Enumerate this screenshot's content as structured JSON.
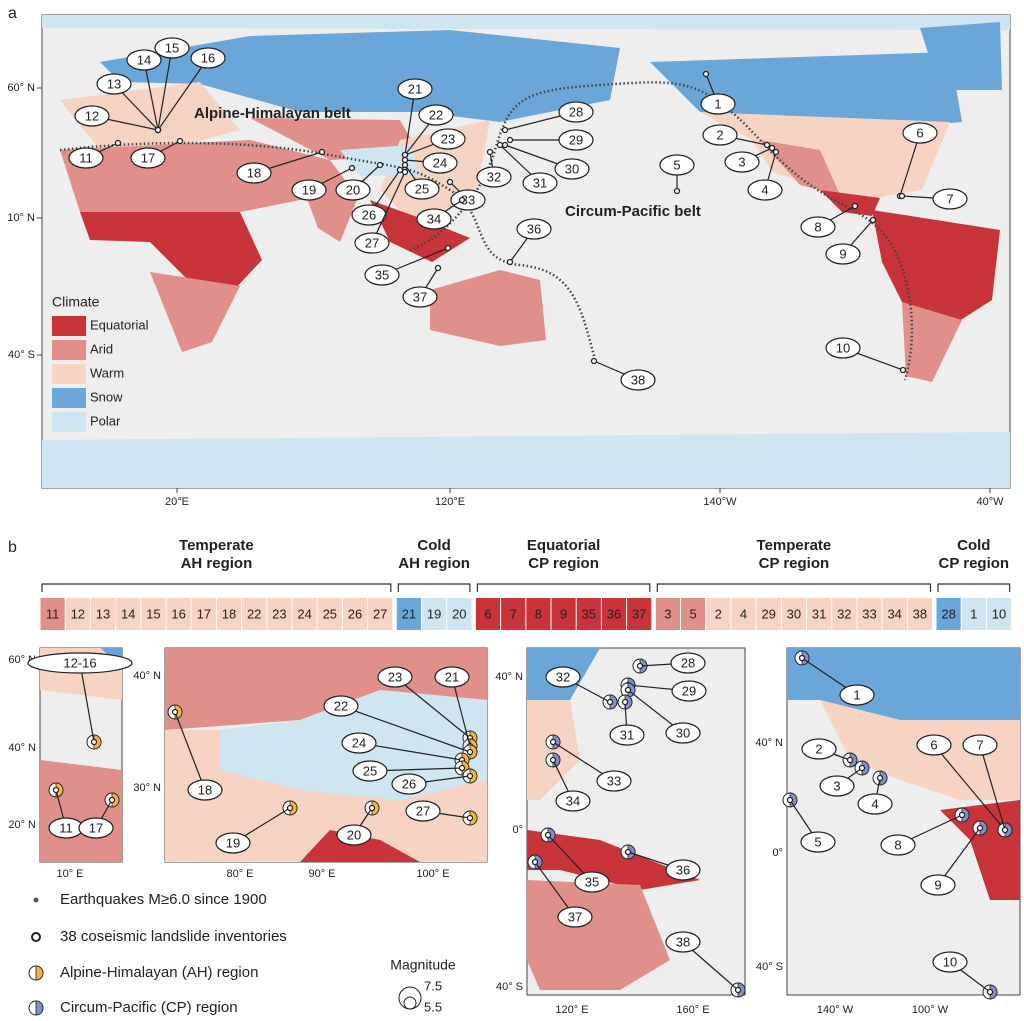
{
  "panel_a": {
    "label": "a",
    "lat_labels": [
      "60° N",
      "10° N",
      "40° S"
    ],
    "lon_labels": [
      "20°E",
      "120°E",
      "140°W",
      "40°W"
    ],
    "belt_labels": [
      "Alpine-Himalayan belt",
      "Circum-Pacific belt"
    ],
    "sites": [
      "1",
      "2",
      "3",
      "4",
      "5",
      "6",
      "7",
      "8",
      "9",
      "10",
      "11",
      "12",
      "13",
      "14",
      "15",
      "16",
      "17",
      "18",
      "19",
      "20",
      "21",
      "22",
      "23",
      "24",
      "25",
      "26",
      "27",
      "28",
      "29",
      "30",
      "31",
      "32",
      "33",
      "34",
      "35",
      "36",
      "37",
      "38"
    ],
    "climate_legend": {
      "title": "Climate",
      "items": [
        {
          "name": "Equatorial",
          "color": "#c8343a"
        },
        {
          "name": "Arid",
          "color": "#e08f8a"
        },
        {
          "name": "Warm",
          "color": "#f6d3c3"
        },
        {
          "name": "Snow",
          "color": "#6aa7d8"
        },
        {
          "name": "Polar",
          "color": "#cfe5f2"
        }
      ]
    }
  },
  "panel_b": {
    "label": "b",
    "groups": [
      {
        "title_lines": [
          "Temperate",
          "AH region"
        ],
        "cells": [
          {
            "label": "11",
            "color": "#e08f8a"
          },
          {
            "label": "12",
            "color": "#f6d3c3"
          },
          {
            "label": "13",
            "color": "#f6d3c3"
          },
          {
            "label": "14",
            "color": "#f6d3c3"
          },
          {
            "label": "15",
            "color": "#f6d3c3"
          },
          {
            "label": "16",
            "color": "#f6d3c3"
          },
          {
            "label": "17",
            "color": "#f6d3c3"
          },
          {
            "label": "18",
            "color": "#f6d3c3"
          },
          {
            "label": "22",
            "color": "#f6d3c3"
          },
          {
            "label": "23",
            "color": "#f6d3c3"
          },
          {
            "label": "24",
            "color": "#f6d3c3"
          },
          {
            "label": "25",
            "color": "#f6d3c3"
          },
          {
            "label": "26",
            "color": "#f6d3c3"
          },
          {
            "label": "27",
            "color": "#f6d3c3"
          }
        ]
      },
      {
        "title_lines": [
          "Cold",
          "AH region"
        ],
        "cells": [
          {
            "label": "21",
            "color": "#6aa7d8"
          },
          {
            "label": "19",
            "color": "#cfe5f2"
          },
          {
            "label": "20",
            "color": "#cfe5f2"
          }
        ]
      },
      {
        "title_lines": [
          "Equatorial",
          "CP region"
        ],
        "cells": [
          {
            "label": "6",
            "color": "#c8343a"
          },
          {
            "label": "7",
            "color": "#c8343a"
          },
          {
            "label": "8",
            "color": "#c8343a"
          },
          {
            "label": "9",
            "color": "#c8343a"
          },
          {
            "label": "35",
            "color": "#c8343a"
          },
          {
            "label": "36",
            "color": "#c8343a"
          },
          {
            "label": "37",
            "color": "#c8343a"
          }
        ]
      },
      {
        "title_lines": [
          "Temperate",
          "CP region"
        ],
        "cells": [
          {
            "label": "3",
            "color": "#e08f8a"
          },
          {
            "label": "5",
            "color": "#e08f8a"
          },
          {
            "label": "2",
            "color": "#f6d3c3"
          },
          {
            "label": "4",
            "color": "#f6d3c3"
          },
          {
            "label": "29",
            "color": "#f6d3c3"
          },
          {
            "label": "30",
            "color": "#f6d3c3"
          },
          {
            "label": "31",
            "color": "#f6d3c3"
          },
          {
            "label": "32",
            "color": "#f6d3c3"
          },
          {
            "label": "33",
            "color": "#f6d3c3"
          },
          {
            "label": "34",
            "color": "#f6d3c3"
          },
          {
            "label": "38",
            "color": "#f6d3c3"
          }
        ]
      },
      {
        "title_lines": [
          "Cold",
          "CP region"
        ],
        "cells": [
          {
            "label": "28",
            "color": "#6aa7d8"
          },
          {
            "label": "1",
            "color": "#cfe5f2"
          },
          {
            "label": "10",
            "color": "#cfe5f2"
          }
        ]
      }
    ],
    "insets": [
      {
        "lat_labels": [
          "60° N",
          "40° N",
          "20° N"
        ],
        "lon_labels": [
          "10° E"
        ],
        "sites": [
          "12-16",
          "11",
          "17"
        ]
      },
      {
        "lat_labels": [
          "40° N",
          "30° N"
        ],
        "lon_labels": [
          "80° E",
          "90° E",
          "100° E"
        ],
        "sites": [
          "23",
          "21",
          "22",
          "24",
          "25",
          "26",
          "27",
          "18",
          "19",
          "20"
        ]
      },
      {
        "lat_labels": [
          "40° N",
          "0°",
          "40° S"
        ],
        "lon_labels": [
          "120° E",
          "160° E"
        ],
        "sites": [
          "28",
          "32",
          "29",
          "30",
          "31",
          "33",
          "34",
          "36",
          "35",
          "37",
          "38"
        ]
      },
      {
        "lat_labels": [
          "40° N",
          "0°",
          "40° S"
        ],
        "lon_labels": [
          "140° W",
          "100° W"
        ],
        "sites": [
          "1",
          "2",
          "6",
          "7",
          "3",
          "4",
          "5",
          "8",
          "9",
          "10"
        ]
      }
    ],
    "legend": {
      "items": [
        "Earthquakes M≥6.0 since 1900",
        "38 coseismic landslide inventories",
        "Alpine-Himalayan (AH) region",
        "Circum-Pacific (CP) region"
      ],
      "magnitude_title": "Magnitude",
      "magnitude_labels": [
        "7.5",
        "5.5"
      ]
    }
  }
}
